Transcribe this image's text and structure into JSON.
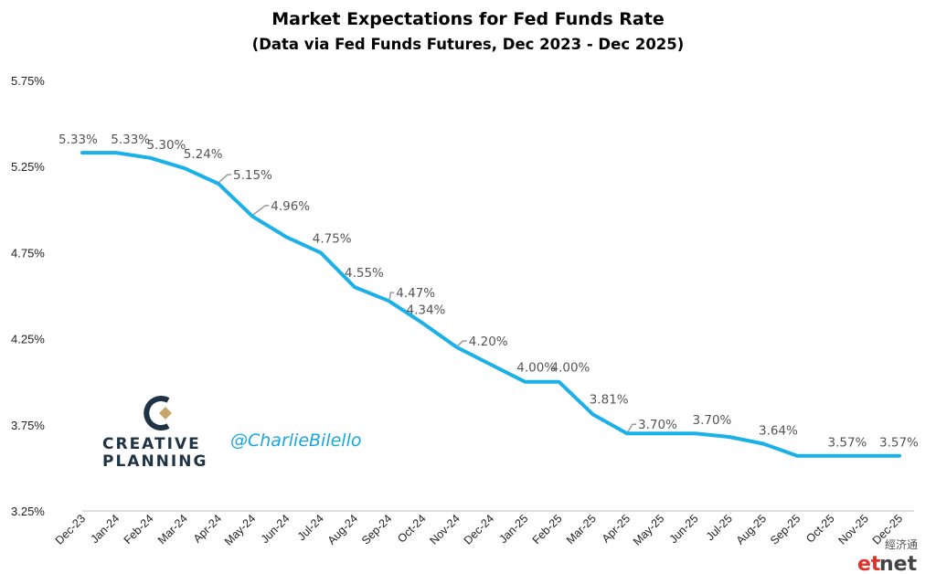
{
  "chart_data": {
    "type": "line",
    "title": "Market Expectations for Fed Funds Rate",
    "subtitle": "(Data via Fed Funds Futures, Dec 2023 - Dec 2025)",
    "categories": [
      "Dec-23",
      "Jan-24",
      "Feb-24",
      "Mar-24",
      "Apr-24",
      "May-24",
      "Jun-24",
      "Jul-24",
      "Aug-24",
      "Sep-24",
      "Oct-24",
      "Nov-24",
      "Dec-24",
      "Jan-25",
      "Feb-25",
      "Mar-25",
      "Apr-25",
      "May-25",
      "Jun-25",
      "Jul-25",
      "Aug-25",
      "Sep-25",
      "Oct-25",
      "Nov-25",
      "Dec-25"
    ],
    "values": [
      5.33,
      5.33,
      5.3,
      5.24,
      5.15,
      4.96,
      4.84,
      4.75,
      4.55,
      4.47,
      4.34,
      4.2,
      4.1,
      4.0,
      4.0,
      3.81,
      3.7,
      3.7,
      3.7,
      3.68,
      3.64,
      3.57,
      3.57,
      3.57,
      3.57
    ],
    "data_labels": [
      {
        "index": 0,
        "text": "5.33%"
      },
      {
        "index": 1,
        "text": "5.33%"
      },
      {
        "index": 2,
        "text": "5.30%"
      },
      {
        "index": 3,
        "text": "5.24%"
      },
      {
        "index": 4,
        "text": "5.15%"
      },
      {
        "index": 5,
        "text": "4.96%"
      },
      {
        "index": 7,
        "text": "4.75%"
      },
      {
        "index": 8,
        "text": "4.55%"
      },
      {
        "index": 9,
        "text": "4.47%"
      },
      {
        "index": 10,
        "text": "4.34%"
      },
      {
        "index": 11,
        "text": "4.20%"
      },
      {
        "index": 13,
        "text": "4.00%"
      },
      {
        "index": 14,
        "text": "4.00%"
      },
      {
        "index": 15,
        "text": "3.81%"
      },
      {
        "index": 16,
        "text": "3.70%"
      },
      {
        "index": 18,
        "text": "3.70%"
      },
      {
        "index": 20,
        "text": "3.64%"
      },
      {
        "index": 22,
        "text": "3.57%"
      },
      {
        "index": 24,
        "text": "3.57%"
      }
    ],
    "yticks": [
      "5.75%",
      "5.25%",
      "4.75%",
      "4.25%",
      "3.75%",
      "3.25%"
    ],
    "ytick_values": [
      5.75,
      5.25,
      4.75,
      4.25,
      3.75,
      3.25
    ],
    "ylim": [
      3.25,
      5.75
    ],
    "grid": false,
    "legend": "none",
    "line_color": "#1ab0e8"
  },
  "branding": {
    "logo_line1": "CREATIVE",
    "logo_line2": "PLANNING",
    "handle": "@CharlieBilello",
    "watermark_cn": "經济通",
    "watermark_et": "et",
    "watermark_net": "net",
    "logo_colors": {
      "navy": "#1f3346",
      "gold": "#c8a56a",
      "teal": "#1aa7e0"
    }
  }
}
